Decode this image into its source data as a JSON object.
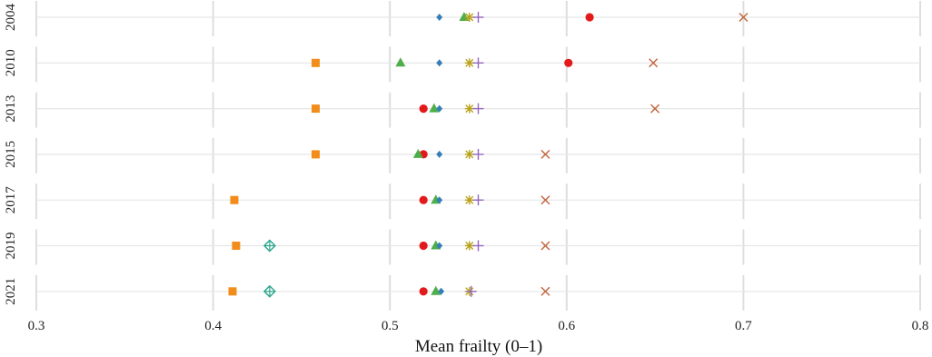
{
  "chart_data": {
    "type": "scatter",
    "title": "",
    "xlabel": "Mean frailty (0–1)",
    "ylabel": "",
    "xlim": [
      0.3,
      0.8
    ],
    "x_ticks": [
      "0.3",
      "0.4",
      "0.5",
      "0.6",
      "0.7",
      "0.8"
    ],
    "grid": true,
    "legend": "none",
    "panels": [
      "2004",
      "2010",
      "2013",
      "2015",
      "2017",
      "2019",
      "2021"
    ],
    "series": [
      {
        "marker": "square",
        "color": "#f28c1a",
        "values": [
          null,
          0.458,
          0.458,
          0.458,
          0.412,
          0.413,
          0.411
        ]
      },
      {
        "marker": "diamond-plus",
        "color": "#2ca58d",
        "values": [
          null,
          null,
          null,
          null,
          null,
          0.432,
          0.432
        ]
      },
      {
        "marker": "circle",
        "color": "#e31a1c",
        "values": [
          0.613,
          0.601,
          0.519,
          0.519,
          0.519,
          0.519,
          0.519
        ]
      },
      {
        "marker": "triangle",
        "color": "#4daf4a",
        "values": [
          0.542,
          0.506,
          0.525,
          0.516,
          0.526,
          0.526,
          0.526
        ]
      },
      {
        "marker": "diamond",
        "color": "#377eb8",
        "values": [
          0.528,
          0.528,
          0.528,
          0.528,
          0.528,
          0.528,
          0.529
        ]
      },
      {
        "marker": "star",
        "color": "#b8a21a",
        "values": [
          0.545,
          0.545,
          0.545,
          0.545,
          0.545,
          0.545,
          0.545
        ]
      },
      {
        "marker": "plus",
        "color": "#9467bd",
        "values": [
          0.55,
          0.55,
          0.55,
          0.55,
          0.55,
          0.55,
          0.546
        ]
      },
      {
        "marker": "cross",
        "color": "#c0643c",
        "values": [
          0.7,
          0.649,
          0.65,
          0.588,
          0.588,
          0.588,
          0.588
        ]
      }
    ]
  }
}
